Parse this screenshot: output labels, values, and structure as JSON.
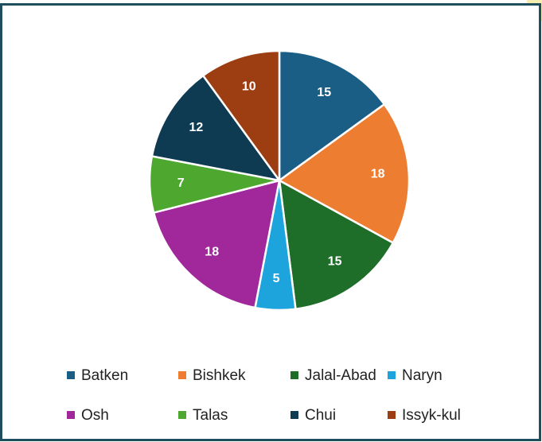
{
  "chart_data": {
    "type": "pie",
    "categories": [
      "Batken",
      "Bishkek",
      "Jalal-Abad",
      "Naryn",
      "Osh",
      "Talas",
      "Chui",
      "Issyk-kul"
    ],
    "values": [
      15,
      18,
      15,
      5,
      18,
      7,
      12,
      10
    ],
    "colors": [
      "#1b5e85",
      "#ed7d31",
      "#1e6e2a",
      "#1ea4dc",
      "#a0289a",
      "#4ea72e",
      "#0e3a52",
      "#9c3d12"
    ],
    "legend": "bottom"
  }
}
